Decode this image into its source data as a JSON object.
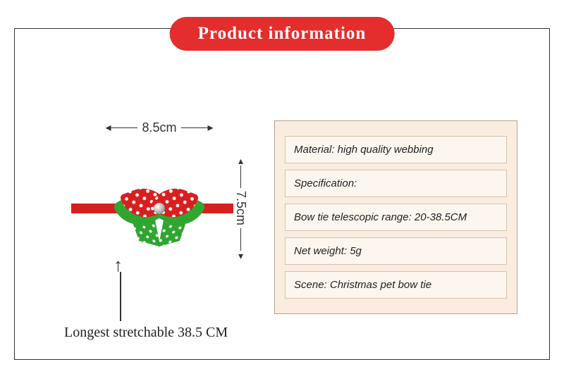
{
  "title": "Product information",
  "colors": {
    "badge_bg": "#e42e2e",
    "badge_text": "#ffffff",
    "border": "#333333",
    "panel_bg": "#fbece0",
    "panel_border": "#b7a18d",
    "row_bg": "#fdf6ef",
    "row_border": "#d4c3b0",
    "strap": "#d81f1f",
    "bow_front": "#d81f1f",
    "bow_back": "#2fa62f",
    "dot": "#ffffff"
  },
  "dimensions": {
    "width_label": "8.5cm",
    "height_label": "7.5cm",
    "length_label": "Longest stretchable 38.5 CM"
  },
  "info_rows": [
    "Material: high quality webbing",
    "Specification:",
    "Bow tie telescopic range: 20-38.5CM",
    "Net weight: 5g",
    "Scene: Christmas pet bow tie"
  ]
}
